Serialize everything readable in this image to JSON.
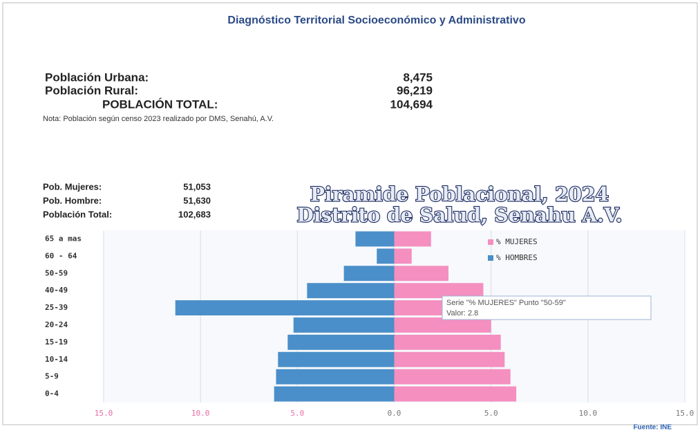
{
  "header": {
    "title": "Diagnóstico Territorial Socioeconómico y Administrativo"
  },
  "population": {
    "rows": [
      {
        "label": "Población Urbana:",
        "value": "8,475"
      },
      {
        "label": "Población Rural:",
        "value": "96,219"
      },
      {
        "label": "POBLACIÓN TOTAL:",
        "value": "104,694"
      }
    ],
    "note": "Nota: Población según censo 2023 realizado por DMS, Senahú, A.V."
  },
  "side_stats": {
    "rows": [
      {
        "label": "Pob. Mujeres:",
        "value": "51,053"
      },
      {
        "label": "Pob. Hombre:",
        "value": "51,630"
      },
      {
        "label": "Población Total:",
        "value": "102,683"
      }
    ]
  },
  "chart_data": {
    "type": "pyramid",
    "title": [
      "Piramide Poblacional, 2024",
      "Distrito de Salud, Senahu A.V."
    ],
    "categories": [
      "65 a mas",
      "60 - 64",
      "50-59",
      "40-49",
      "25-39",
      "20-24",
      "15-19",
      "10-14",
      "5-9",
      "0-4"
    ],
    "series": [
      {
        "name": "% MUJERES",
        "color": "#f48fc0",
        "values": [
          1.9,
          0.9,
          2.8,
          4.6,
          5.2,
          5.0,
          5.5,
          5.7,
          6.0,
          6.3
        ]
      },
      {
        "name": "% HOMBRES",
        "color": "#4a8fc9",
        "values": [
          -2.0,
          -0.9,
          -2.6,
          -4.5,
          -11.3,
          -5.2,
          -5.5,
          -6.0,
          -6.1,
          -6.2
        ]
      }
    ],
    "xlim": [
      -15,
      15
    ],
    "xticks": [
      {
        "value": -15,
        "label": "15.0"
      },
      {
        "value": -10,
        "label": "10.0"
      },
      {
        "value": -5,
        "label": "5.0"
      },
      {
        "value": 0,
        "label": "0.0"
      },
      {
        "value": 5,
        "label": "5.0"
      },
      {
        "value": 10,
        "label": "10.0"
      },
      {
        "value": 15,
        "label": "15.0"
      }
    ],
    "grid": true,
    "tooltip": [
      "Serie \"% MUJERES\" Punto \"50-59\"",
      "Valor: 2.8"
    ],
    "source": "Fuente: INE"
  }
}
